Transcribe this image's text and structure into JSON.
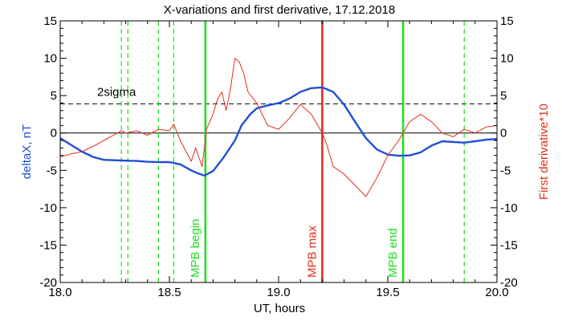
{
  "chart_data": {
    "type": "line",
    "title": "X-variations and first derivative, 17.12.2018",
    "xlabel": "UT, hours",
    "ylabel_left": "deltaX, nT",
    "ylabel_right": "First derivative*10",
    "xlim": [
      18.0,
      20.0
    ],
    "ylim_left": [
      -20,
      15
    ],
    "ylim_right": [
      -20,
      15
    ],
    "x_ticks": [
      18.0,
      18.5,
      19.0,
      19.5,
      20.0
    ],
    "x_tick_labels": [
      "18.0",
      "18.5",
      "19.0",
      "19.5",
      "20.0"
    ],
    "y_ticks": [
      -20,
      -15,
      -10,
      -5,
      0,
      5,
      10,
      15
    ],
    "y_tick_labels": [
      "-20",
      "-15",
      "-10",
      "-5",
      "0",
      "5",
      "10",
      "15"
    ],
    "colors": {
      "deltaX": "#1f4fd8",
      "derivative": "#e0301e",
      "mpb_begin_end": "#22dd22",
      "mpb_max": "#e0301e",
      "axes": "#000000",
      "right_axis_label": "#e0301e",
      "left_axis_label": "#1f4fd8"
    },
    "series": [
      {
        "axis": "left",
        "x": [
          18.0,
          18.05,
          18.1,
          18.15,
          18.2,
          18.25,
          18.3,
          18.35,
          18.4,
          18.45,
          18.5,
          18.55,
          18.6,
          18.63,
          18.66,
          18.7,
          18.75,
          18.8,
          18.83,
          18.87,
          18.9,
          18.95,
          19.0,
          19.05,
          19.1,
          19.15,
          19.2,
          19.25,
          19.3,
          19.35,
          19.4,
          19.45,
          19.5,
          19.55,
          19.6,
          19.65,
          19.7,
          19.75,
          19.8,
          19.85,
          19.9,
          19.95,
          20.0
        ],
        "y": [
          -0.7,
          -1.6,
          -2.5,
          -3.2,
          -3.6,
          -3.65,
          -3.7,
          -3.75,
          -3.85,
          -3.9,
          -3.9,
          -4.2,
          -5.0,
          -5.4,
          -5.7,
          -5.1,
          -3.2,
          -1.0,
          1.0,
          2.5,
          3.3,
          3.7,
          4.0,
          4.6,
          5.5,
          6.0,
          6.1,
          5.5,
          3.8,
          1.5,
          -0.7,
          -2.2,
          -2.9,
          -3.05,
          -3.0,
          -2.6,
          -1.7,
          -1.1,
          -1.2,
          -1.3,
          -1.1,
          -0.9,
          -0.8
        ]
      },
      {
        "axis": "right",
        "x": [
          18.0,
          18.05,
          18.1,
          18.15,
          18.2,
          18.25,
          18.28,
          18.3,
          18.35,
          18.4,
          18.45,
          18.5,
          18.52,
          18.55,
          18.6,
          18.62,
          18.65,
          18.67,
          18.7,
          18.72,
          18.74,
          18.76,
          18.78,
          18.8,
          18.82,
          18.84,
          18.86,
          18.9,
          18.95,
          19.0,
          19.05,
          19.1,
          19.15,
          19.2,
          19.22,
          19.25,
          19.3,
          19.35,
          19.4,
          19.45,
          19.5,
          19.55,
          19.58,
          19.6,
          19.65,
          19.7,
          19.75,
          19.8,
          19.85,
          19.9,
          19.95,
          20.0
        ],
        "y": [
          -3.2,
          -2.8,
          -2.5,
          -1.8,
          -1.0,
          -0.2,
          0.3,
          0.0,
          0.3,
          -0.3,
          0.5,
          0.3,
          1.2,
          -1.0,
          -3.8,
          -2.0,
          -4.5,
          0.5,
          2.5,
          4.5,
          5.5,
          3.0,
          6.0,
          10.0,
          9.5,
          8.0,
          5.5,
          4.0,
          1.0,
          0.5,
          2.0,
          3.8,
          2.5,
          0.0,
          -1.5,
          -4.5,
          -5.5,
          -7.0,
          -8.5,
          -6.0,
          -3.0,
          -1.0,
          0.5,
          1.5,
          2.5,
          1.5,
          0.0,
          -0.5,
          0.5,
          0.0,
          0.8,
          1.0
        ]
      }
    ],
    "horizontal_lines": [
      {
        "y": 0,
        "style": "solid"
      },
      {
        "y": 3.9,
        "style": "dashed",
        "label": "2sigma"
      }
    ],
    "vertical_markers": [
      {
        "x": 18.28,
        "style": "dashed",
        "label": ""
      },
      {
        "x": 18.31,
        "style": "dashed",
        "label": ""
      },
      {
        "x": 18.45,
        "style": "dashed",
        "label": ""
      },
      {
        "x": 18.52,
        "style": "dashed",
        "label": ""
      },
      {
        "x": 18.665,
        "style": "solid",
        "label": "MPB begin"
      },
      {
        "x": 19.2,
        "style": "solid",
        "label": "MPB max"
      },
      {
        "x": 19.57,
        "style": "solid",
        "label": "MPB end"
      },
      {
        "x": 19.85,
        "style": "dashed",
        "label": ""
      }
    ],
    "grid": false,
    "legend": "none"
  }
}
